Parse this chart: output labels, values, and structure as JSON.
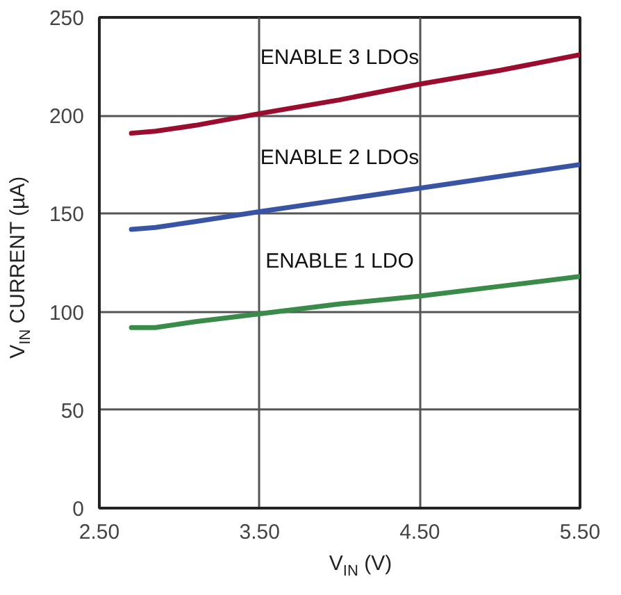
{
  "chart_data": {
    "type": "line",
    "xlabel": "V$_{IN}$ (V)",
    "ylabel": "V$_{IN}$ CURRENT (µA)",
    "xlim": [
      2.5,
      5.5
    ],
    "ylim": [
      0,
      250
    ],
    "xticks": [
      {
        "value": 2.5,
        "label": "2.50"
      },
      {
        "value": 3.5,
        "label": "3.50"
      },
      {
        "value": 4.5,
        "label": "4.50"
      },
      {
        "value": 5.5,
        "label": "5.50"
      }
    ],
    "yticks": [
      0,
      50,
      100,
      150,
      200,
      250
    ],
    "grid": true,
    "line_style": "solid",
    "series": [
      {
        "name": "ENABLE 3 LDOs",
        "color": "#9b0d2e",
        "x": [
          2.7,
          2.85,
          3.1,
          3.5,
          4.0,
          4.5,
          5.0,
          5.5
        ],
        "values": [
          191,
          192,
          195,
          201,
          208,
          216,
          223,
          231
        ]
      },
      {
        "name": "ENABLE 2 LDOs",
        "color": "#3a54a4",
        "x": [
          2.7,
          2.85,
          3.1,
          3.5,
          4.0,
          4.5,
          5.0,
          5.5
        ],
        "values": [
          142,
          143,
          146,
          151,
          157,
          163,
          169,
          175
        ]
      },
      {
        "name": "ENABLE 1 LDO",
        "color": "#3a8a4a",
        "x": [
          2.7,
          2.85,
          3.1,
          3.5,
          4.0,
          4.5,
          5.0,
          5.5
        ],
        "values": [
          92,
          92,
          95,
          99,
          104,
          108,
          113,
          118
        ]
      }
    ]
  }
}
